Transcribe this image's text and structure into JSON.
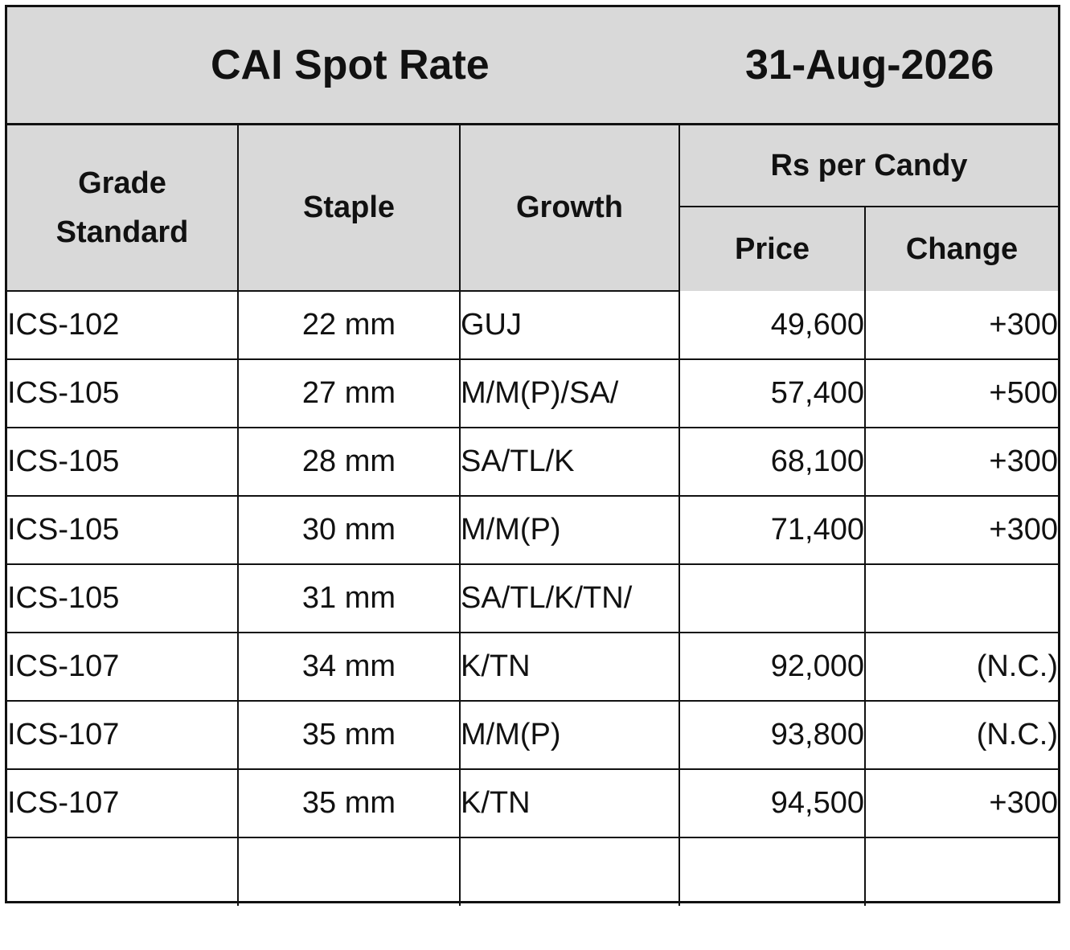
{
  "title": "CAI Spot Rate",
  "date": "31-Aug-2026",
  "headers": {
    "grade_standard": "Grade Standard",
    "staple": "Staple",
    "growth": "Growth",
    "rs_per_candy": "Rs per Candy",
    "price": "Price",
    "change": "Change"
  },
  "rows": [
    {
      "grade": "ICS-102",
      "staple": "22 mm",
      "growth": "GUJ",
      "price": "49,600",
      "change": "+300"
    },
    {
      "grade": "ICS-105",
      "staple": "27 mm",
      "growth": "M/M(P)/SA/",
      "price": "57,400",
      "change": "+500"
    },
    {
      "grade": "ICS-105",
      "staple": "28 mm",
      "growth": "SA/TL/K",
      "price": "68,100",
      "change": "+300"
    },
    {
      "grade": "ICS-105",
      "staple": "30 mm",
      "growth": "M/M(P)",
      "price": "71,400",
      "change": "+300"
    },
    {
      "grade": "ICS-105",
      "staple": "31 mm",
      "growth": "SA/TL/K/TN/",
      "price": "",
      "change": ""
    },
    {
      "grade": "ICS-107",
      "staple": "34 mm",
      "growth": "K/TN",
      "price": "92,000",
      "change": "(N.C.)"
    },
    {
      "grade": "ICS-107",
      "staple": "35 mm",
      "growth": "M/M(P)",
      "price": "93,800",
      "change": "(N.C.)"
    },
    {
      "grade": "ICS-107",
      "staple": "35 mm",
      "growth": "K/TN",
      "price": "94,500",
      "change": "+300"
    },
    {
      "grade": "",
      "staple": "",
      "growth": "",
      "price": "",
      "change": ""
    }
  ]
}
